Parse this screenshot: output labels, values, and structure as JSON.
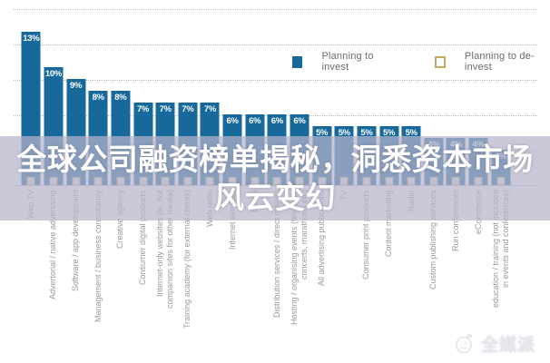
{
  "legend": {
    "invest_label": "Planning to invest",
    "deinvest_label": "Planning to de-invest"
  },
  "overlay": {
    "line1": "全球公司融资榜单揭秘，洞悉资本市场",
    "line2": "风云变幻"
  },
  "watermark": {
    "text": "全媒派"
  },
  "colors": {
    "bar_blue": "#17699c",
    "deinvest_border": "#c4ab5e",
    "overlay_band": "rgba(182,180,202,0.72)",
    "grid": "#bcbcbc",
    "category_text": "#9a9a9a"
  },
  "chart_data": {
    "type": "bar",
    "title": "",
    "unit": "%",
    "ylim": [
      0,
      15
    ],
    "gridlines": [
      3,
      6,
      9,
      12,
      15
    ],
    "grid": "dotted",
    "legend_position": "top-right",
    "categories": [
      "Web TV",
      "Advertorial / native advertising",
      "Software / app development",
      "Management / business consultancy",
      "Creative agency",
      "Consumer digital products",
      "Internet-only websites (ie, not\ncompanion sites for other media)",
      "Training academy (for external clients)",
      "Web radio",
      "Internet services",
      "Books",
      "Distribution services / direct mailing",
      "Hosting / organising events (festivals,\nconcerts, marathons etc)",
      "All advertising publications",
      "TV",
      "Consumer print products",
      "Content marketing",
      "Radio",
      "Custom publishing services",
      "Run conferences",
      "eCommerce",
      "education / training (not included\nin events and conferences)"
    ],
    "series": [
      {
        "name": "Planning to invest",
        "values": [
          13,
          10,
          9,
          8,
          8,
          7,
          7,
          7,
          7,
          6,
          6,
          6,
          6,
          5,
          5,
          5,
          5,
          5,
          4,
          4,
          4,
          3
        ]
      },
      {
        "name": "Planning to de-invest",
        "values": [
          1,
          1,
          1,
          1,
          1,
          1,
          1,
          1,
          1,
          1,
          1,
          1,
          1,
          1,
          1,
          1,
          1,
          1,
          1,
          1,
          1,
          1
        ]
      }
    ]
  }
}
